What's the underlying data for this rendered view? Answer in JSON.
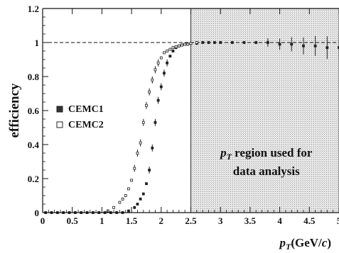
{
  "chart_data": {
    "type": "scatter",
    "ylabel": "efficiency",
    "xlabel": "p_T(GeV/c)",
    "xlim": [
      0,
      5
    ],
    "ylim": [
      0,
      1.2
    ],
    "xticks": [
      "0",
      "0.5",
      "1",
      "1.5",
      "2",
      "2.5",
      "3",
      "3.5",
      "4",
      "4.5",
      "5"
    ],
    "yticks": [
      "0",
      "0.2",
      "0.4",
      "0.6",
      "0.8",
      "1",
      "1.2"
    ],
    "reference_line": {
      "y": 1.0,
      "style": "dashed"
    },
    "shaded_region": {
      "x_from": 2.5,
      "x_to": 5.0,
      "label_line1": "p_T region used for",
      "label_line2": "data analysis"
    },
    "legend": {
      "placement": "middle-left"
    },
    "series": [
      {
        "name": "CEMC1",
        "marker": "filled-square",
        "x": [
          0.05,
          0.15,
          0.25,
          0.35,
          0.45,
          0.55,
          0.65,
          0.75,
          0.85,
          0.95,
          1.05,
          1.15,
          1.25,
          1.35,
          1.45,
          1.55,
          1.6,
          1.65,
          1.7,
          1.75,
          1.8,
          1.85,
          1.9,
          1.95,
          2.0,
          2.05,
          2.1,
          2.15,
          2.2,
          2.25,
          2.3,
          2.35,
          2.4,
          2.45,
          2.5,
          2.6,
          2.7,
          2.8,
          2.9,
          3.0,
          3.2,
          3.4,
          3.6,
          3.8,
          4.0,
          4.2,
          4.4,
          4.6,
          4.8,
          5.0
        ],
        "y": [
          0.0,
          0.0,
          0.0,
          0.0,
          0.0,
          0.0,
          0.0,
          0.0,
          0.0,
          0.0,
          0.0,
          0.0,
          0.0,
          0.0,
          0.01,
          0.03,
          0.05,
          0.08,
          0.11,
          0.17,
          0.25,
          0.38,
          0.53,
          0.66,
          0.74,
          0.82,
          0.88,
          0.92,
          0.95,
          0.97,
          0.98,
          0.985,
          0.99,
          0.99,
          0.995,
          0.995,
          1.0,
          1.0,
          1.0,
          1.0,
          1.0,
          1.0,
          1.0,
          1.0,
          0.99,
          0.99,
          0.98,
          0.98,
          0.97,
          0.97
        ]
      },
      {
        "name": "CEMC2",
        "marker": "open-square",
        "x": [
          1.1,
          1.2,
          1.3,
          1.35,
          1.4,
          1.45,
          1.5,
          1.55,
          1.6,
          1.65,
          1.7,
          1.75,
          1.8,
          1.85,
          1.9,
          1.95,
          2.0,
          2.05,
          2.1,
          2.15,
          2.2,
          2.25,
          2.3,
          2.35,
          2.4,
          2.45,
          2.5,
          2.6
        ],
        "y": [
          0.01,
          0.03,
          0.06,
          0.08,
          0.1,
          0.14,
          0.19,
          0.26,
          0.35,
          0.41,
          0.53,
          0.63,
          0.71,
          0.78,
          0.84,
          0.88,
          0.91,
          0.94,
          0.95,
          0.96,
          0.97,
          0.975,
          0.98,
          0.985,
          0.99,
          0.99,
          0.995,
          1.0
        ]
      }
    ]
  }
}
